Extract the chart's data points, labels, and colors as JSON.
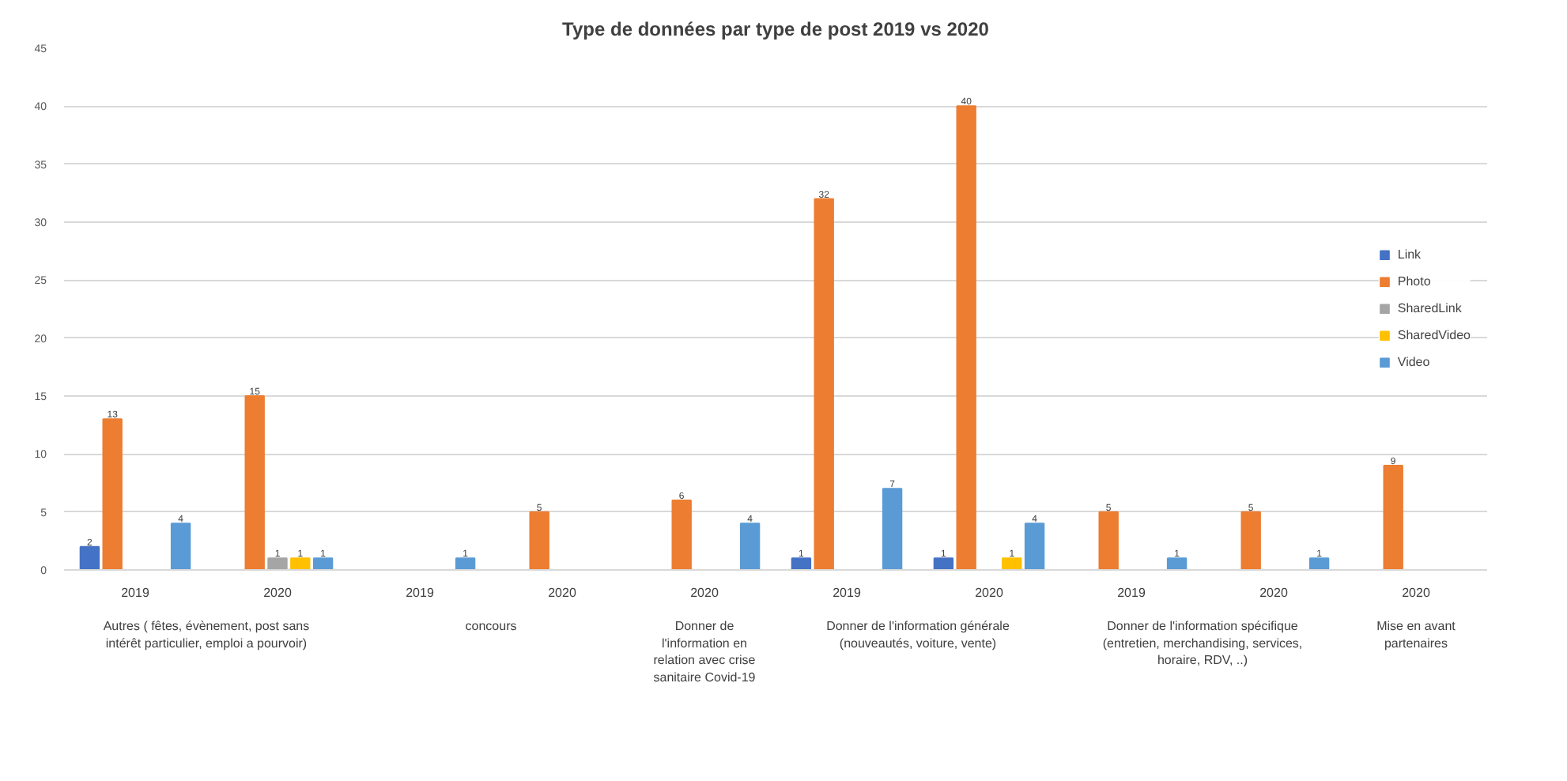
{
  "chart_data": {
    "type": "bar",
    "title": "Type de données par type de post 2019 vs 2020",
    "categories": [
      "2019",
      "2020",
      "2019",
      "2020",
      "2020",
      "2019",
      "2020",
      "2019",
      "2020",
      "2020"
    ],
    "annotations": [
      "Autres ( fêtes, évènement, post sans intérêt particulier, emploi a pourvoir)",
      "concours",
      "Donner de l'information en relation avec crise sanitaire Covid-19",
      "Donner de l'information générale (nouveautés, voiture, vente)",
      "Donner de l'information spécifique (entretien, merchandising, services, horaire, RDV, ..)",
      "Mise en avant partenaires"
    ],
    "series": [
      {
        "name": "Link",
        "color": "#4472c4",
        "values": [
          2,
          null,
          null,
          null,
          null,
          1,
          1,
          null,
          null,
          null
        ]
      },
      {
        "name": "Photo",
        "color": "#ed7d31",
        "values": [
          13,
          15,
          null,
          5,
          6,
          32,
          40,
          5,
          5,
          9
        ]
      },
      {
        "name": "SharedLink",
        "color": "#a5a5a5",
        "values": [
          null,
          1,
          null,
          null,
          null,
          null,
          null,
          null,
          null,
          null
        ]
      },
      {
        "name": "SharedVideo",
        "color": "#ffc000",
        "values": [
          null,
          1,
          null,
          null,
          null,
          null,
          1,
          null,
          null,
          null
        ]
      },
      {
        "name": "Video",
        "color": "#5b9bd5",
        "values": [
          4,
          1,
          1,
          null,
          4,
          7,
          4,
          1,
          1,
          null
        ]
      }
    ],
    "ylim": [
      0,
      45
    ],
    "yticks": [
      0,
      5,
      10,
      15,
      20,
      25,
      30,
      35,
      40,
      45
    ],
    "grid": "y",
    "legend": "right",
    "data_labels": true
  }
}
